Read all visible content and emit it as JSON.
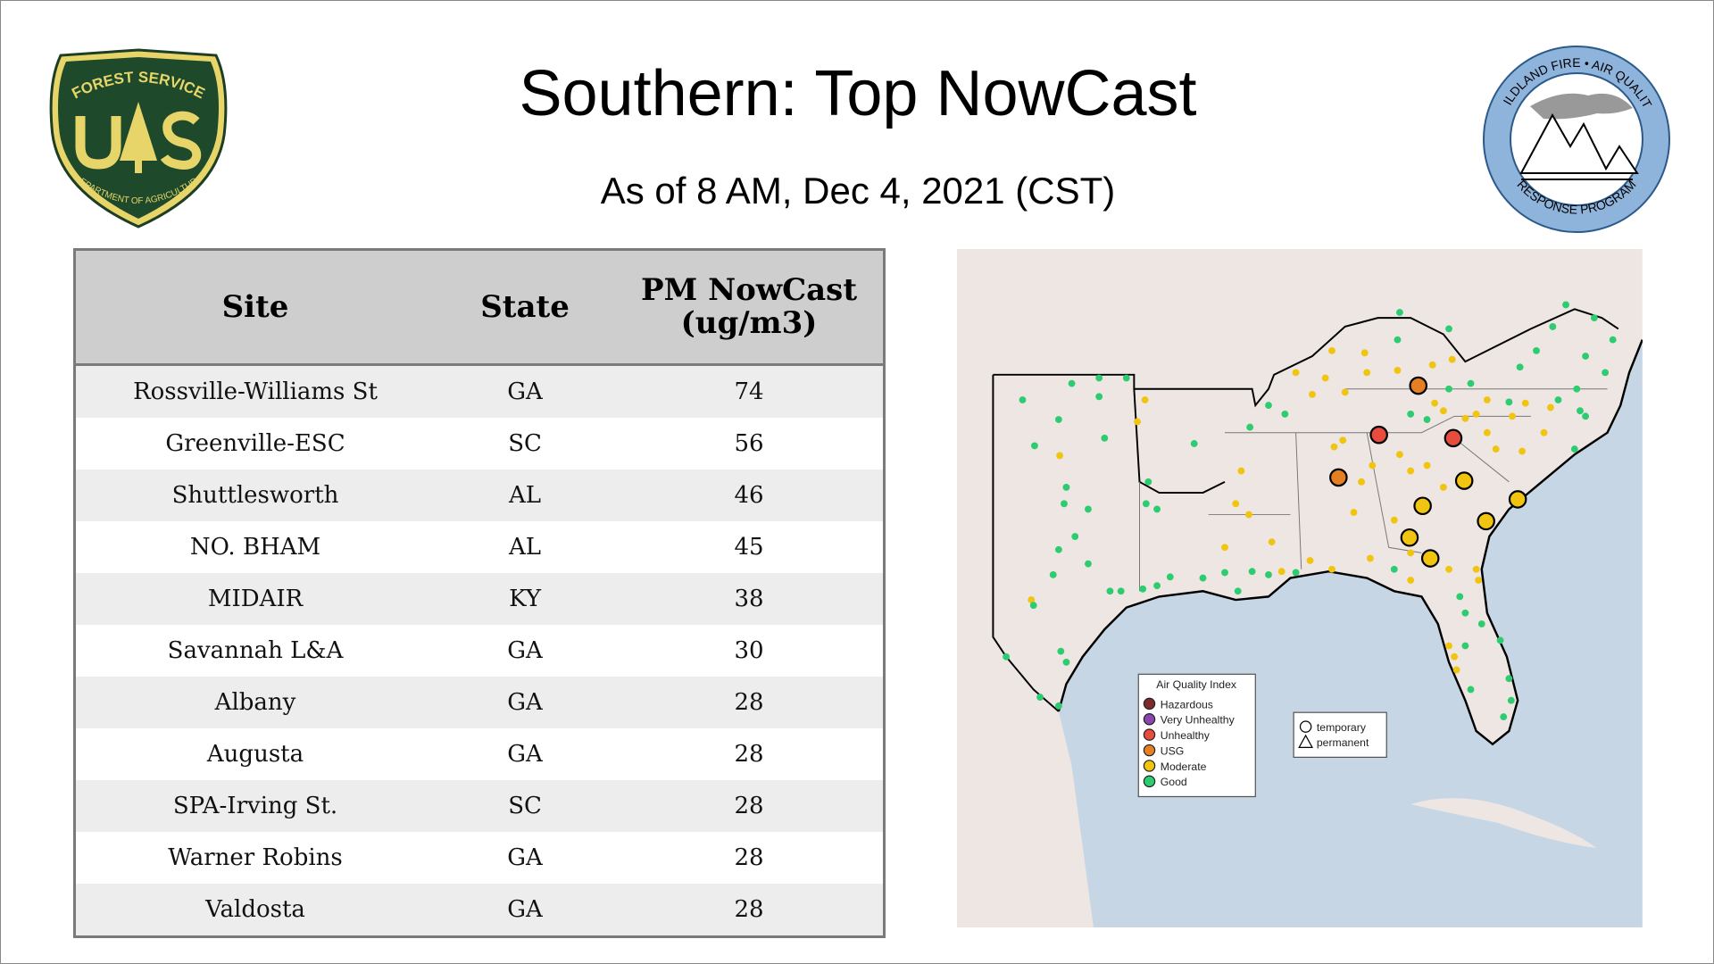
{
  "header": {
    "title": "Southern: Top NowCast",
    "subtitle": "As of  8 AM, Dec  4, 2021 (CST)"
  },
  "logos": {
    "left": {
      "top_text": "FOREST SERVICE",
      "letters": "U S",
      "bottom_text": "DEPARTMENT OF AGRICULTURE"
    },
    "right": {
      "top_text": "WILDLAND FIRE • AIR QUALITY",
      "bottom_text": "RESPONSE PROGRAM"
    }
  },
  "table": {
    "headers": [
      "Site",
      "State",
      "PM NowCast (ug/m3)"
    ],
    "rows": [
      [
        "Rossville-Williams St",
        "GA",
        "74"
      ],
      [
        "Greenville-ESC",
        "SC",
        "56"
      ],
      [
        "Shuttlesworth",
        "AL",
        "46"
      ],
      [
        "NO. BHAM",
        "AL",
        "45"
      ],
      [
        "MIDAIR",
        "KY",
        "38"
      ],
      [
        "Savannah L&A",
        "GA",
        "30"
      ],
      [
        "Albany",
        "GA",
        "28"
      ],
      [
        "Augusta",
        "GA",
        "28"
      ],
      [
        "SPA-Irving St.",
        "SC",
        "28"
      ],
      [
        "Warner Robins",
        "GA",
        "28"
      ],
      [
        "Valdosta",
        "GA",
        "28"
      ]
    ]
  },
  "map": {
    "aqi_legend": {
      "title": "Air Quality Index",
      "items": [
        {
          "label": "Hazardous",
          "color": "#7e2a2a"
        },
        {
          "label": "Very Unhealthy",
          "color": "#8e44ad"
        },
        {
          "label": "Unhealthy",
          "color": "#e74c3c"
        },
        {
          "label": "USG",
          "color": "#e67e22"
        },
        {
          "label": "Moderate",
          "color": "#f1c40f"
        },
        {
          "label": "Good",
          "color": "#2ecc71"
        }
      ]
    },
    "type_legend": {
      "items": [
        {
          "label": "temporary",
          "shape": "circle"
        },
        {
          "label": "permanent",
          "shape": "triangle"
        }
      ]
    },
    "land_color": "#ede6e3",
    "water_color": "#c6d6e5"
  }
}
